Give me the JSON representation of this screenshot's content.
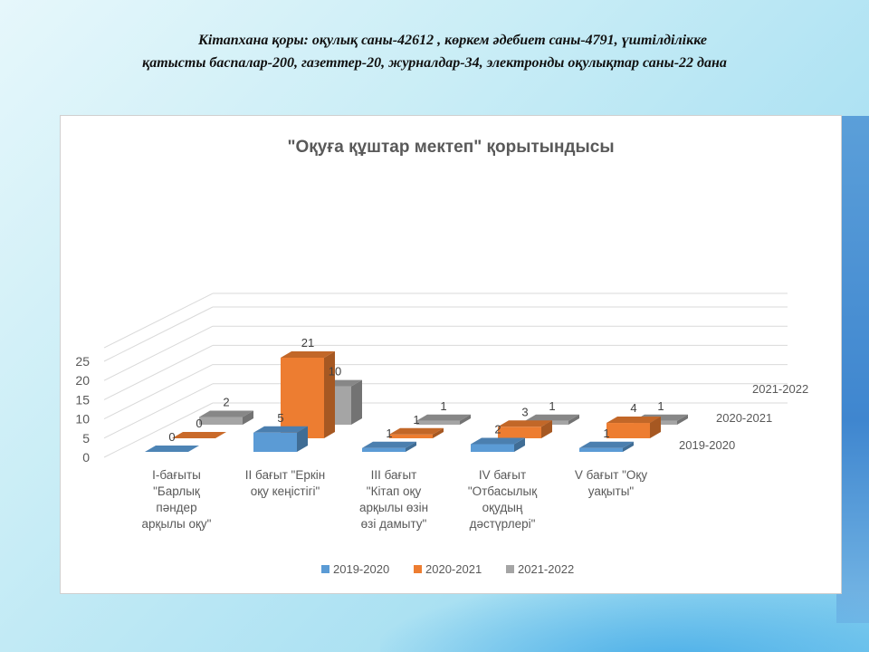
{
  "header": {
    "line1": "Кітапхана қоры: оқулық саны-42612 , көркем әдебиет саны-4791, үштілділікке",
    "line2": "қатысты баспалар-200, газеттер-20, журналдар-34, электронды оқулықтар саны-22 дана"
  },
  "chart_data": {
    "type": "bar",
    "title": "\"Оқуға құштар мектеп\" қорытындысы",
    "categories": [
      [
        "I-бағыты",
        "\"Барлық",
        "пәндер",
        "арқылы оқу\""
      ],
      [
        "II бағыт \"Еркін",
        "оқу кеңістігі\""
      ],
      [
        "III бағыт",
        "\"Кітап оқу",
        "арқылы өзін",
        "өзі дамыту\""
      ],
      [
        "IV бағыт",
        "\"Отбасылық",
        "оқудың",
        "дәстүрлері\""
      ],
      [
        "V бағыт \"Оқу",
        "уақыты\""
      ]
    ],
    "series": [
      {
        "name": "2019-2020",
        "values": [
          0,
          5,
          1,
          2,
          1
        ],
        "color": "#5b9bd5"
      },
      {
        "name": "2020-2021",
        "values": [
          0,
          21,
          1,
          3,
          4
        ],
        "color": "#ed7d31"
      },
      {
        "name": "2021-2022",
        "values": [
          2,
          10,
          1,
          1,
          1
        ],
        "color": "#a5a5a5"
      }
    ],
    "yticks": [
      0,
      5,
      10,
      15,
      20,
      25
    ],
    "ylim": [
      0,
      25
    ],
    "legend_position": "bottom",
    "depth_axis_labels": [
      "2019-2020",
      "2020-2021",
      "2021-2022"
    ],
    "grid": true
  }
}
